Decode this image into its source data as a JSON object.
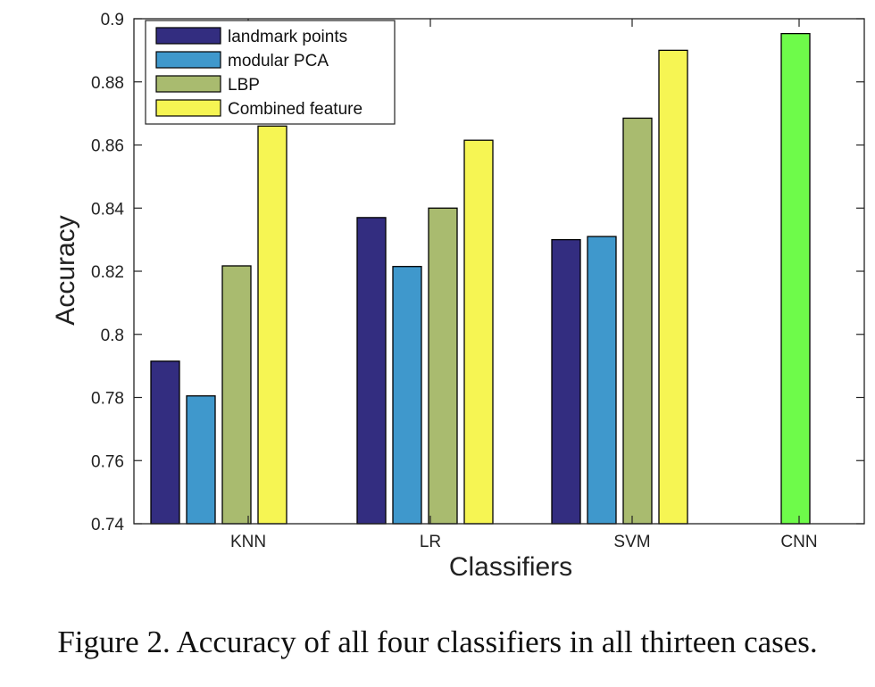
{
  "chart_data": {
    "type": "bar",
    "categories": [
      "KNN",
      "LR",
      "SVM",
      "CNN"
    ],
    "series": [
      {
        "name": "landmark points",
        "color": "#332d80",
        "values": [
          0.7915,
          0.837,
          0.83,
          null
        ]
      },
      {
        "name": "modular PCA",
        "color": "#3f98cc",
        "values": [
          0.7805,
          0.8215,
          0.831,
          null
        ]
      },
      {
        "name": "LBP",
        "color": "#a9bb6f",
        "values": [
          0.8217,
          0.84,
          0.8685,
          null
        ]
      },
      {
        "name": "Combined feature",
        "color": "#f6f553",
        "values": [
          0.866,
          0.8615,
          0.89,
          null
        ]
      },
      {
        "name": "CNN",
        "color": "#6efb4a",
        "values": [
          null,
          null,
          null,
          0.8953
        ],
        "in_legend": false
      }
    ],
    "xlabel": "Classifiers",
    "ylabel": "Accuracy",
    "ylim": [
      0.74,
      0.9
    ],
    "yticks": [
      "0.74",
      "0.76",
      "0.78",
      "0.8",
      "0.82",
      "0.84",
      "0.86",
      "0.88",
      "0.9"
    ],
    "ytick_values": [
      0.74,
      0.76,
      0.78,
      0.8,
      0.82,
      0.84,
      0.86,
      0.88,
      0.9
    ],
    "grid": false,
    "legend_position": "top-left"
  },
  "caption": "Figure 2. Accuracy of all four classifiers in all thirteen cases."
}
